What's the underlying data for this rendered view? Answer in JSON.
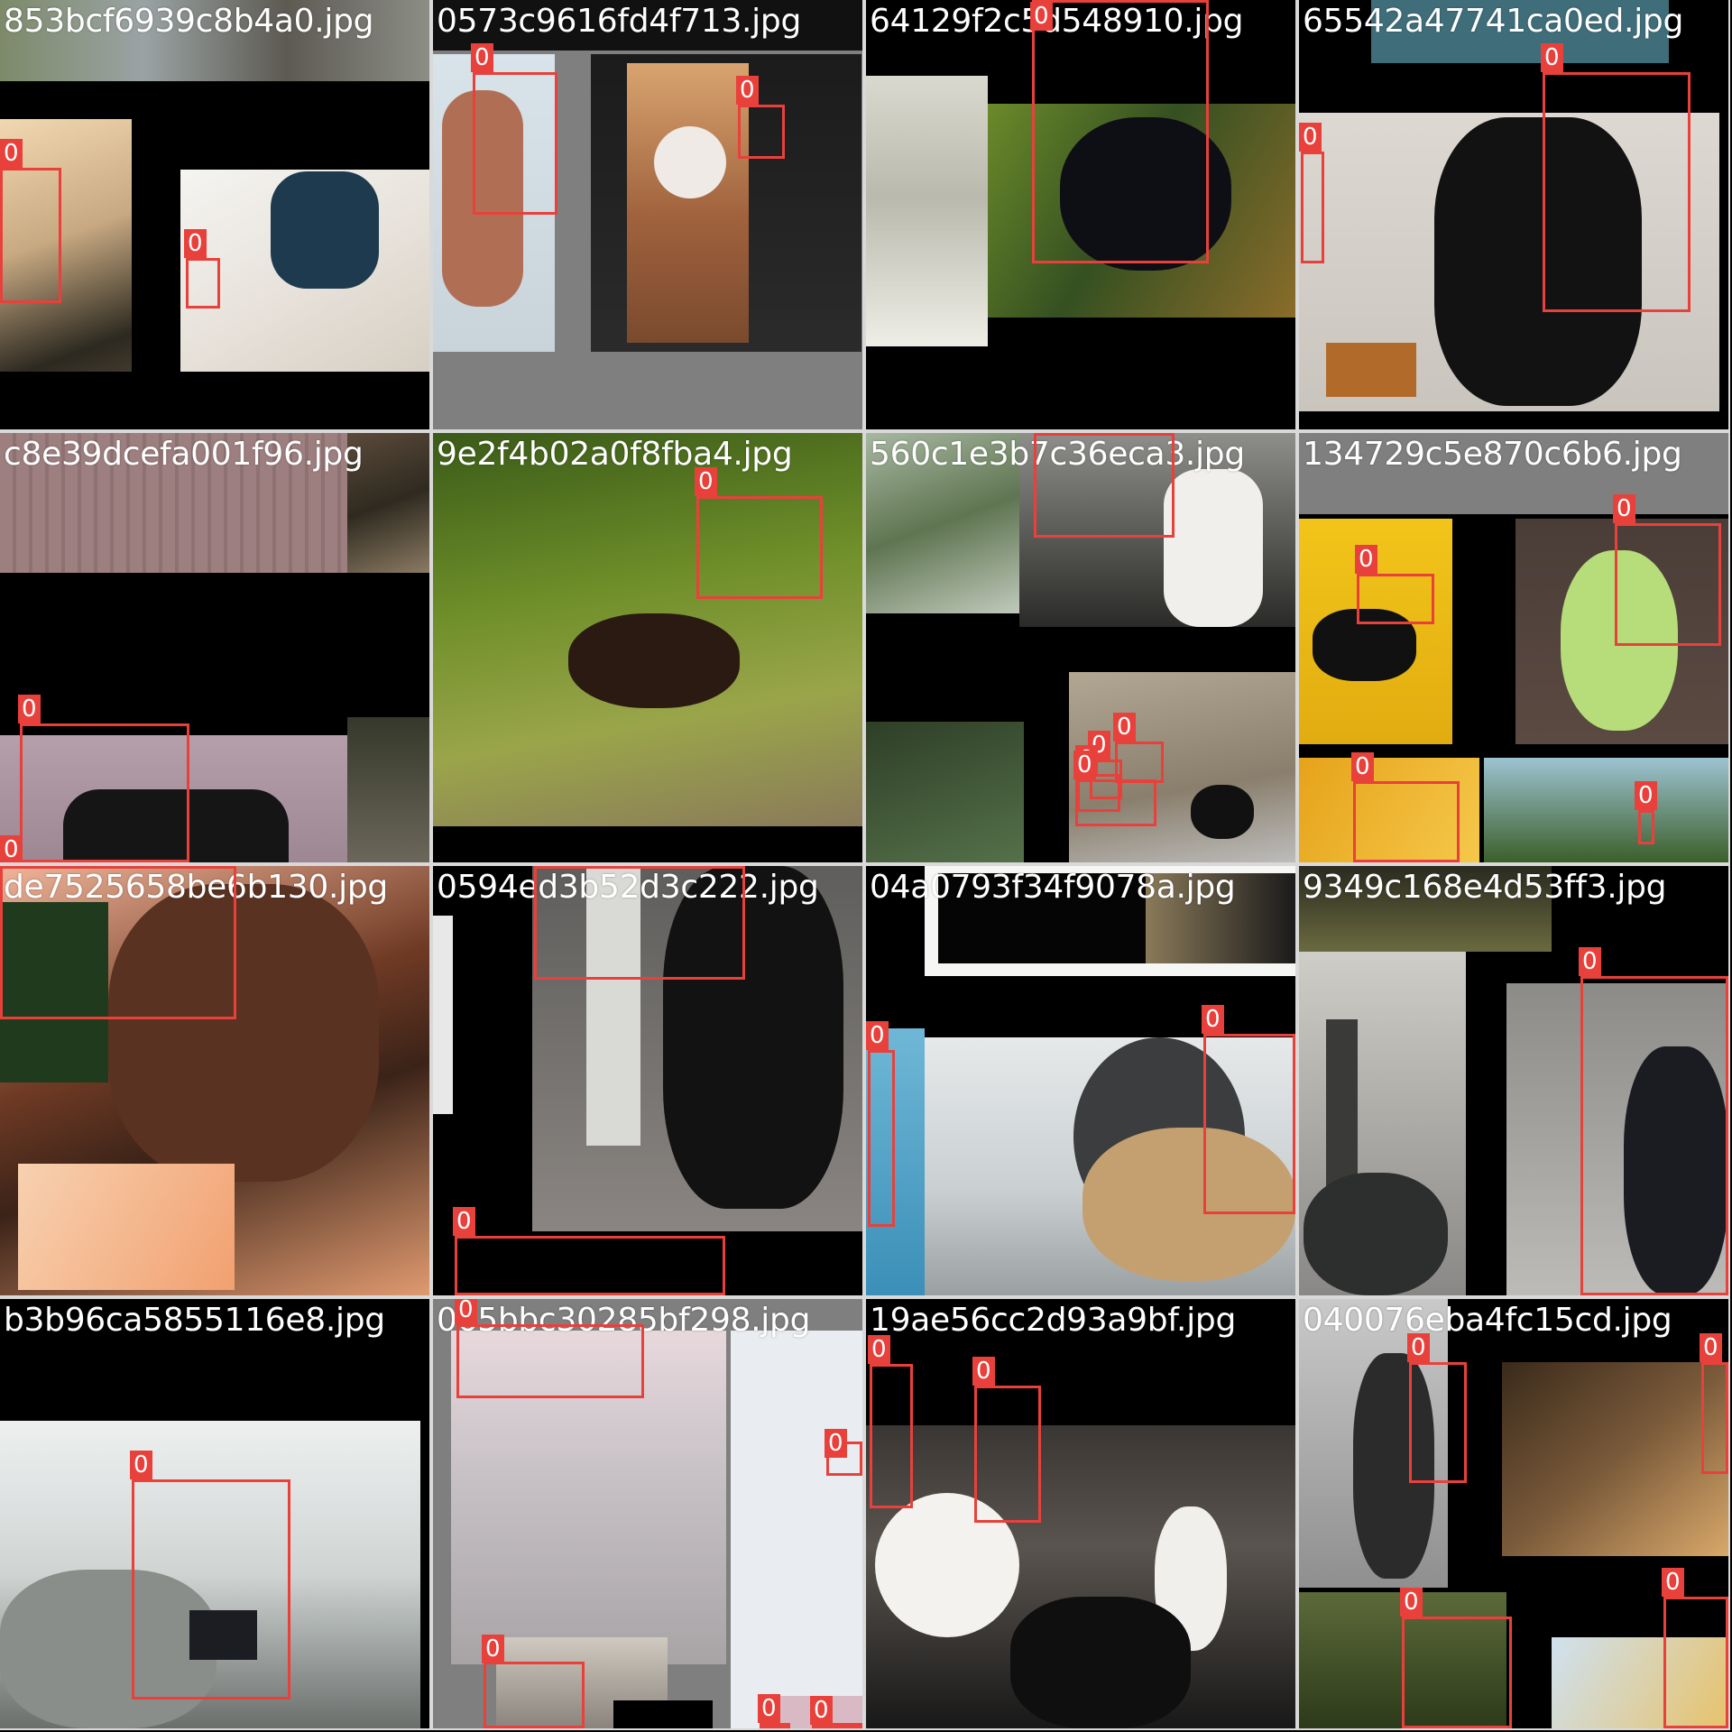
{
  "title": "Training batch mosaic with labels",
  "colors": {
    "box": "#e8413c",
    "text": "#ffffff",
    "background": "#000000"
  },
  "tiles": [
    {
      "filename": "853bcf6939c8b4a0.jpg",
      "boxes": [
        {
          "label": "0"
        },
        {
          "label": "0"
        }
      ]
    },
    {
      "filename": "0573c9616fd4f713.jpg",
      "boxes": [
        {
          "label": "0"
        },
        {
          "label": "0"
        }
      ]
    },
    {
      "filename": "64129f2c5d548910.jpg",
      "boxes": [
        {
          "label": "0"
        }
      ]
    },
    {
      "filename": "65542a47741ca0ed.jpg",
      "boxes": [
        {
          "label": "0"
        },
        {
          "label": "0"
        }
      ]
    },
    {
      "filename": "c8e39dcefa001f96.jpg",
      "boxes": [
        {
          "label": "0"
        },
        {
          "label": "0"
        }
      ]
    },
    {
      "filename": "9e2f4b02a0f8fba4.jpg",
      "boxes": [
        {
          "label": "0"
        }
      ]
    },
    {
      "filename": "560c1e3b7c36eca3.jpg",
      "boxes": [
        {
          "label": "0"
        },
        {
          "label": "0"
        },
        {
          "label": "0"
        },
        {
          "label": "0"
        },
        {
          "label": "0"
        }
      ]
    },
    {
      "filename": "134729c5e870c6b6.jpg",
      "boxes": [
        {
          "label": "0"
        },
        {
          "label": "0"
        },
        {
          "label": "0"
        },
        {
          "label": "0"
        }
      ]
    },
    {
      "filename": "de7525658be6b130.jpg",
      "boxes": [
        {
          "label": "0"
        }
      ]
    },
    {
      "filename": "0594ed3b52d3c222.jpg",
      "boxes": [
        {
          "label": "0"
        },
        {
          "label": "0"
        }
      ]
    },
    {
      "filename": "04a0793f34f9078a.jpg",
      "boxes": [
        {
          "label": "0"
        },
        {
          "label": "0"
        },
        {
          "label": "0"
        }
      ]
    },
    {
      "filename": "9349c168e4d53ff3.jpg",
      "boxes": [
        {
          "label": "0"
        }
      ]
    },
    {
      "filename": "b3b96ca5855116e8.jpg",
      "boxes": [
        {
          "label": "0"
        }
      ]
    },
    {
      "filename": "065bbc30285bf298.jpg",
      "boxes": [
        {
          "label": "0"
        },
        {
          "label": "0"
        },
        {
          "label": "0"
        },
        {
          "label": "0"
        },
        {
          "label": "0"
        }
      ]
    },
    {
      "filename": "19ae56cc2d93a9bf.jpg",
      "boxes": [
        {
          "label": "0"
        },
        {
          "label": "0"
        }
      ]
    },
    {
      "filename": "040076eba4fc15cd.jpg",
      "boxes": [
        {
          "label": "0"
        },
        {
          "label": "0"
        },
        {
          "label": "0"
        },
        {
          "label": "0"
        }
      ]
    }
  ]
}
